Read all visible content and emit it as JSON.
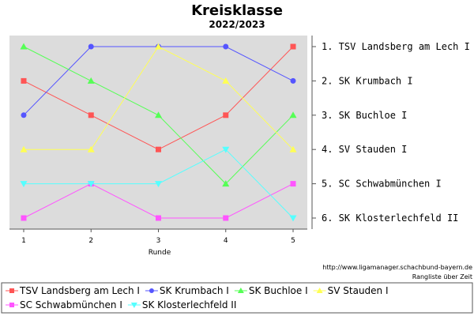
{
  "chart_data": {
    "type": "line",
    "title": "Kreisklasse",
    "subtitle": "2022/2023",
    "xlabel": "Runde",
    "x": [
      1,
      2,
      3,
      4,
      5
    ],
    "ylim": [
      1,
      6
    ],
    "y_inverted": true,
    "rank_labels": [
      "1. TSV Landsberg am Lech I",
      "2. SK Krumbach I",
      "3. SK Buchloe I",
      "4. SV Stauden I",
      "5. SC Schwabmünchen I",
      "6. SK Klosterlechfeld II"
    ],
    "source": "http://www.ligamanager.schachbund-bayern.de",
    "note": "Rangliste über Zeit",
    "grid": false,
    "legend_position": "bottom",
    "series": [
      {
        "name": "TSV Landsberg am Lech I",
        "values": [
          2,
          3,
          4,
          3,
          1
        ],
        "color": "#ff5555",
        "marker": "square"
      },
      {
        "name": "SK Krumbach I",
        "values": [
          3,
          1,
          1,
          1,
          2
        ],
        "color": "#5555ff",
        "marker": "circle"
      },
      {
        "name": "SK Buchloe I",
        "values": [
          1,
          2,
          3,
          5,
          3
        ],
        "color": "#55ff55",
        "marker": "triangle-up"
      },
      {
        "name": "SV Stauden I",
        "values": [
          4,
          4,
          1,
          2,
          4
        ],
        "color": "#ffff55",
        "marker": "triangle-up"
      },
      {
        "name": "SC Schwabmünchen I",
        "values": [
          6,
          5,
          6,
          6,
          5
        ],
        "color": "#ff55ff",
        "marker": "square"
      },
      {
        "name": "SK Klosterlechfeld II",
        "values": [
          5,
          5,
          5,
          4,
          6
        ],
        "color": "#55ffff",
        "marker": "triangle-down"
      }
    ]
  }
}
